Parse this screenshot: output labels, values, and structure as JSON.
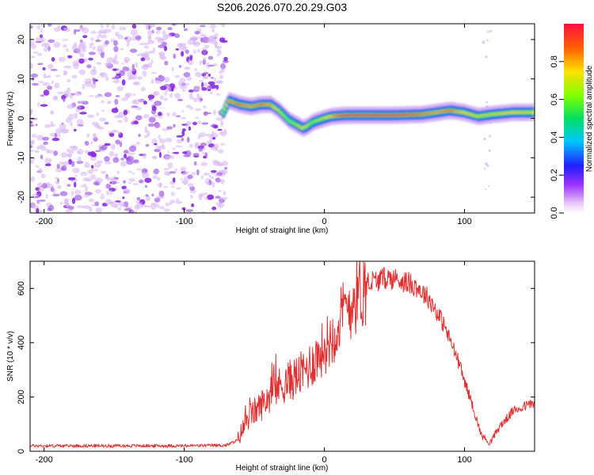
{
  "title": "S206.2026.070.20.29.G03",
  "chart_data": [
    {
      "type": "heatmap",
      "title": "S206.2026.070.20.29.G03",
      "xlabel": "Height of straight line (km)",
      "ylabel": "Frequency (Hz)",
      "xlim": [
        -210,
        150
      ],
      "ylim": [
        -24,
        24
      ],
      "xticks": [
        -200,
        -100,
        0,
        100
      ],
      "yticks": [
        -20,
        -10,
        0,
        10,
        20
      ],
      "noise_region_x": [
        -210,
        -70
      ],
      "ridge": {
        "x": [
          -72,
          -68,
          -60,
          -52,
          -45,
          -38,
          -32,
          -25,
          -20,
          -15,
          -12,
          -8,
          -4,
          0,
          5,
          15,
          30,
          50,
          70,
          80,
          90,
          100,
          110,
          120,
          135,
          150
        ],
        "y": [
          1.5,
          4.5,
          3.5,
          3.0,
          3.5,
          3.5,
          2.0,
          -0.5,
          -1.5,
          -2.5,
          -2.0,
          -1.0,
          -0.5,
          0.0,
          0.5,
          0.8,
          0.8,
          0.8,
          1.0,
          1.5,
          2.0,
          1.5,
          0.5,
          1.0,
          1.5,
          1.5
        ],
        "amplitude": [
          0.6,
          0.8,
          0.85,
          0.8,
          0.85,
          0.8,
          0.7,
          0.6,
          0.65,
          0.75,
          0.7,
          0.6,
          0.65,
          0.7,
          0.75,
          0.95,
          1.0,
          0.95,
          0.85,
          0.8,
          0.85,
          0.75,
          0.7,
          0.7,
          0.75,
          0.7
        ]
      },
      "colorbar": {
        "label": "Normalized spectral amplitude",
        "range": [
          0.0,
          1.0
        ],
        "ticks": [
          "0.0",
          "0.2",
          "0.4",
          "0.6",
          "0.8"
        ]
      }
    },
    {
      "type": "line",
      "xlabel": "Height of straight line (km)",
      "ylabel": "SNR (10 * v/v)",
      "xlim": [
        -210,
        150
      ],
      "ylim": [
        0,
        700
      ],
      "xticks": [
        -200,
        -100,
        0,
        100
      ],
      "yticks": [
        0,
        200,
        400,
        600
      ],
      "series": [
        {
          "name": "SNR",
          "color": "#e03030",
          "x": [
            -210,
            -150,
            -100,
            -70,
            -62,
            -55,
            -45,
            -35,
            -25,
            -15,
            -5,
            5,
            15,
            25,
            35,
            45,
            55,
            65,
            75,
            85,
            95,
            105,
            112,
            118,
            125,
            135,
            150
          ],
          "y": [
            20,
            20,
            20,
            22,
            40,
            120,
            170,
            230,
            260,
            290,
            350,
            420,
            520,
            590,
            625,
            640,
            630,
            610,
            560,
            470,
            340,
            180,
            60,
            30,
            90,
            150,
            180
          ]
        }
      ]
    }
  ]
}
